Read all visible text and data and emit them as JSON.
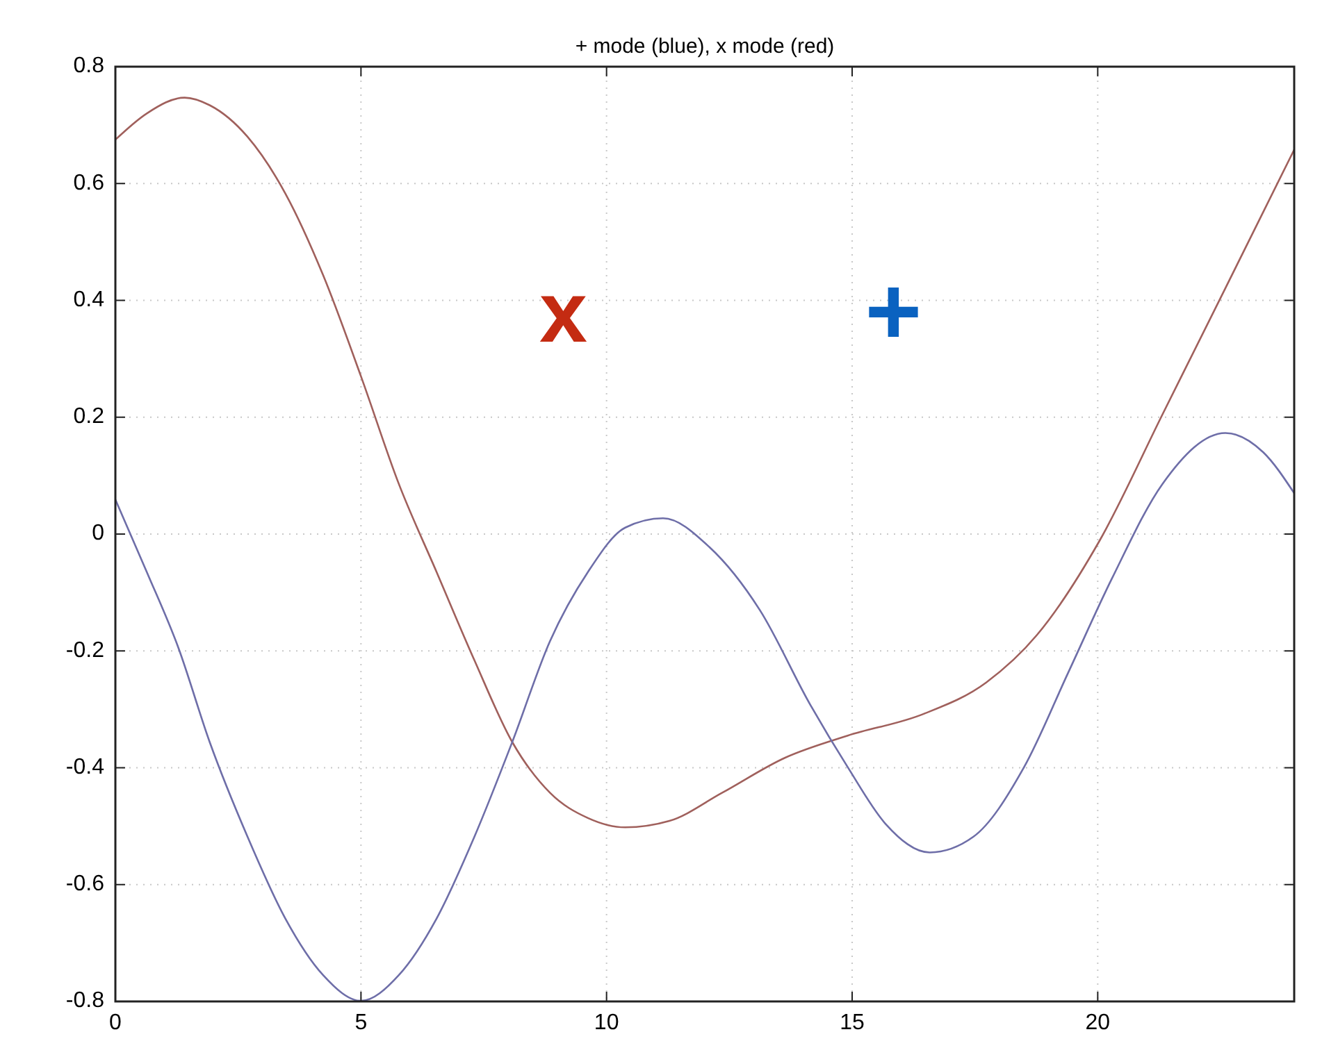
{
  "chart_data": {
    "type": "line",
    "title": "+ mode (blue), x mode (red)",
    "xlim": [
      0,
      24
    ],
    "xticks": [
      0,
      5,
      10,
      15,
      20
    ],
    "ylim": [
      -0.8,
      0.8
    ],
    "yticks": [
      -0.8,
      -0.6,
      -0.4,
      -0.2,
      0,
      0.2,
      0.4,
      0.6,
      0.8
    ],
    "grid": true,
    "annotations": [
      "x",
      "+"
    ],
    "series": [
      {
        "color": "#a0605c",
        "x": [
          0,
          0.64,
          1.41,
          1.92,
          2.69,
          3.46,
          4.23,
          5,
          5.77,
          6.54,
          7.31,
          8.08,
          8.85,
          9.62,
          10.38,
          11.28,
          12.35,
          13.63,
          14.91,
          16.45,
          17.73,
          18.76,
          20.04,
          21.32,
          22.6,
          24
        ],
        "values": [
          0.675,
          0.72,
          0.747,
          0.734,
          0.68,
          0.583,
          0.443,
          0.27,
          0.086,
          -0.065,
          -0.216,
          -0.356,
          -0.443,
          -0.486,
          -0.502,
          -0.491,
          -0.443,
          -0.383,
          -0.345,
          -0.308,
          -0.254,
          -0.173,
          -0.011,
          0.205,
          0.421,
          0.658
        ]
      },
      {
        "color": "#6e6ea8",
        "x": [
          0,
          0.64,
          1.28,
          1.92,
          2.69,
          3.46,
          4.23,
          5,
          5.77,
          6.54,
          7.31,
          8.08,
          8.85,
          9.62,
          10.38,
          11.15,
          12.09,
          13.12,
          14.14,
          14.91,
          15.68,
          16.58,
          17.47,
          18.5,
          19.4,
          20.29,
          21.32,
          22.6,
          23.37,
          24
        ],
        "values": [
          0.059,
          -0.065,
          -0.194,
          -0.356,
          -0.518,
          -0.658,
          -0.755,
          -0.799,
          -0.755,
          -0.658,
          -0.518,
          -0.356,
          -0.183,
          -0.065,
          0.011,
          0.027,
          -0.022,
          -0.13,
          -0.291,
          -0.399,
          -0.496,
          -0.545,
          -0.518,
          -0.399,
          -0.237,
          -0.076,
          0.086,
          0.173,
          0.14,
          0.07
        ]
      }
    ]
  }
}
